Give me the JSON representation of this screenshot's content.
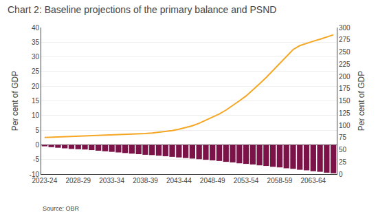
{
  "chart_data": {
    "type": "bar",
    "title": "Chart 2: Baseline projections of the primary balance and PSND",
    "ylabel": "Per cent of GDP",
    "y2label": "Per cent of GDP",
    "annotations": [
      "Source: OBR"
    ],
    "categories": [
      "2023-24",
      null,
      null,
      null,
      null,
      "2028-29",
      null,
      null,
      null,
      null,
      "2033-34",
      null,
      null,
      null,
      null,
      "2038-39",
      null,
      null,
      null,
      null,
      "2043-44",
      null,
      null,
      null,
      null,
      "2048-49",
      null,
      null,
      null,
      null,
      "2053-54",
      null,
      null,
      null,
      null,
      "2058-59",
      null,
      null,
      null,
      null,
      "2063-64",
      null,
      null,
      null
    ],
    "series": [
      {
        "type": "bar",
        "color": "#7B1248",
        "values": [
          -0.5,
          -0.8,
          -1.0,
          -1.2,
          -1.4,
          -1.5,
          -1.6,
          -1.8,
          -2.0,
          -2.2,
          -2.4,
          -2.6,
          -2.8,
          -3.0,
          -3.2,
          -3.4,
          -3.5,
          -3.7,
          -3.9,
          -4.1,
          -4.3,
          -4.5,
          -4.7,
          -4.9,
          -5.1,
          -5.3,
          -5.5,
          -5.8,
          -6.0,
          -6.3,
          -6.5,
          -6.7,
          -7.0,
          -7.2,
          -7.5,
          -7.7,
          -8.0,
          -8.2,
          -8.5,
          -8.7,
          -9.0,
          -9.2,
          -9.5,
          -9.7
        ]
      },
      {
        "type": "line",
        "color": "#F5A623",
        "axis": "y2",
        "values": [
          75,
          75.5,
          76,
          76.5,
          77,
          77.5,
          78,
          78.5,
          79,
          79.5,
          80,
          80.5,
          81,
          81.5,
          82,
          83,
          84,
          85.5,
          87,
          89,
          92,
          95,
          99,
          104,
          110,
          116,
          123,
          131,
          140,
          150,
          160,
          172,
          185,
          198,
          212,
          226,
          241,
          255,
          263,
          268,
          272,
          276,
          280,
          285
        ]
      }
    ],
    "ylim": [
      -10,
      40
    ],
    "yticks": [
      -10,
      -5,
      0,
      5,
      10,
      15,
      20,
      25,
      30,
      35,
      40
    ],
    "y2lim": [
      0,
      300
    ],
    "y2ticks": [
      0,
      25,
      50,
      75,
      100,
      125,
      150,
      175,
      200,
      225,
      250,
      275,
      300
    ],
    "grid": true
  }
}
